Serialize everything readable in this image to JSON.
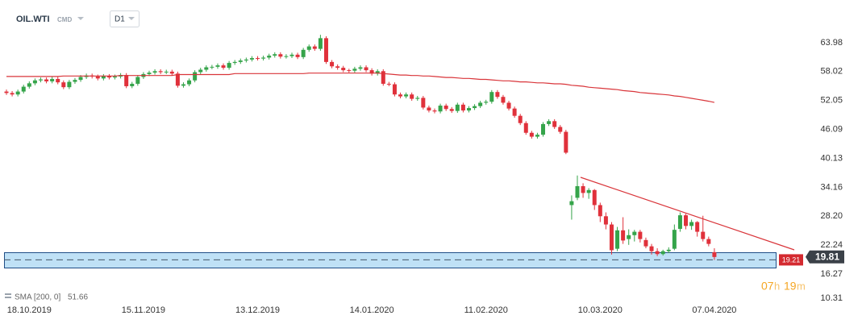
{
  "header": {
    "symbol": "OIL.WTI",
    "market": "CMD",
    "timeframe": "D1"
  },
  "countdown": {
    "hours": "07",
    "hours_unit": "h",
    "minutes": "19",
    "minutes_unit": "m"
  },
  "chart_data": {
    "type": "candlestick",
    "colors": {
      "up": "#35a44a",
      "down": "#e0313b",
      "sma": "#d9353a"
    },
    "ylim": [
      10.31,
      71.44
    ],
    "yticks": [
      63.98,
      58.02,
      52.05,
      46.09,
      40.13,
      34.16,
      {
        "value": 28.2,
        "label": "28.20"
      },
      22.24,
      16.27,
      10.31
    ],
    "grid": false,
    "price_tags": [
      19.21,
      19.81
    ],
    "categories": [
      null,
      null,
      null,
      null,
      "18.10.2019",
      null,
      null,
      null,
      null,
      null,
      null,
      null,
      null,
      null,
      null,
      null,
      null,
      null,
      null,
      null,
      null,
      null,
      null,
      null,
      "15.11.2019",
      null,
      null,
      null,
      null,
      null,
      null,
      null,
      null,
      null,
      null,
      null,
      null,
      null,
      null,
      null,
      null,
      null,
      null,
      null,
      "13.12.2019",
      null,
      null,
      null,
      null,
      null,
      null,
      null,
      null,
      null,
      null,
      null,
      null,
      null,
      null,
      null,
      null,
      null,
      null,
      null,
      "14.01.2020",
      null,
      null,
      null,
      null,
      null,
      null,
      null,
      null,
      null,
      null,
      null,
      null,
      null,
      null,
      null,
      null,
      null,
      null,
      null,
      "11.02.2020",
      null,
      null,
      null,
      null,
      null,
      null,
      null,
      null,
      null,
      null,
      null,
      null,
      null,
      null,
      null,
      null,
      null,
      null,
      null,
      "10.03.2020",
      null,
      null,
      null,
      null,
      null,
      null,
      null,
      null,
      null,
      null,
      null,
      null,
      null,
      null,
      null,
      null,
      null,
      null,
      null,
      "07.04.2020"
    ],
    "ohlc": [
      [
        53.9,
        54.3,
        53.2,
        53.6
      ],
      [
        53.6,
        54.0,
        52.9,
        53.3
      ],
      [
        53.3,
        54.3,
        52.9,
        53.9
      ],
      [
        53.9,
        55.3,
        53.5,
        54.9
      ],
      [
        54.9,
        56.0,
        54.5,
        55.6
      ],
      [
        55.6,
        56.6,
        55.2,
        56.2
      ],
      [
        56.2,
        56.8,
        55.8,
        56.4
      ],
      [
        56.4,
        56.8,
        55.6,
        56.0
      ],
      [
        56.0,
        56.9,
        55.6,
        56.5
      ],
      [
        56.5,
        56.9,
        55.4,
        55.8
      ],
      [
        55.8,
        56.2,
        54.4,
        54.8
      ],
      [
        54.8,
        56.3,
        54.4,
        55.9
      ],
      [
        55.9,
        56.7,
        55.5,
        56.3
      ],
      [
        56.3,
        57.3,
        55.9,
        56.9
      ],
      [
        56.9,
        57.6,
        56.5,
        57.2
      ],
      [
        57.2,
        57.6,
        56.6,
        57.0
      ],
      [
        57.0,
        57.4,
        56.2,
        56.6
      ],
      [
        56.6,
        57.5,
        56.2,
        57.1
      ],
      [
        57.1,
        57.5,
        56.4,
        56.8
      ],
      [
        56.8,
        57.4,
        56.4,
        57.0
      ],
      [
        57.0,
        57.7,
        56.6,
        57.3
      ],
      [
        57.3,
        57.7,
        54.6,
        55.0
      ],
      [
        55.0,
        55.9,
        54.6,
        55.5
      ],
      [
        55.5,
        57.3,
        55.1,
        56.9
      ],
      [
        56.9,
        57.9,
        56.5,
        57.5
      ],
      [
        57.5,
        58.2,
        57.1,
        57.8
      ],
      [
        57.8,
        58.5,
        57.4,
        58.1
      ],
      [
        58.1,
        58.5,
        57.5,
        57.9
      ],
      [
        57.9,
        58.4,
        57.5,
        58.0
      ],
      [
        58.0,
        58.4,
        57.2,
        57.6
      ],
      [
        57.6,
        58.0,
        54.7,
        55.1
      ],
      [
        55.1,
        55.8,
        54.7,
        55.4
      ],
      [
        55.4,
        56.6,
        55.0,
        56.2
      ],
      [
        56.2,
        58.3,
        55.8,
        57.9
      ],
      [
        57.9,
        58.8,
        57.5,
        58.4
      ],
      [
        58.4,
        59.3,
        58.0,
        58.9
      ],
      [
        58.9,
        59.4,
        58.5,
        59.0
      ],
      [
        59.0,
        59.7,
        58.6,
        59.3
      ],
      [
        59.3,
        59.7,
        58.4,
        58.8
      ],
      [
        58.8,
        60.2,
        58.4,
        59.8
      ],
      [
        59.8,
        60.4,
        59.4,
        60.0
      ],
      [
        60.0,
        60.7,
        59.6,
        60.3
      ],
      [
        60.3,
        60.9,
        59.9,
        60.5
      ],
      [
        60.5,
        61.2,
        60.1,
        60.8
      ],
      [
        60.8,
        61.2,
        60.3,
        60.7
      ],
      [
        60.7,
        61.3,
        60.3,
        60.9
      ],
      [
        60.9,
        61.7,
        60.5,
        61.3
      ],
      [
        61.3,
        62.0,
        60.9,
        61.6
      ],
      [
        61.6,
        62.0,
        60.7,
        61.1
      ],
      [
        61.1,
        61.6,
        60.7,
        61.2
      ],
      [
        61.2,
        61.9,
        60.8,
        61.5
      ],
      [
        61.5,
        61.9,
        60.6,
        61.0
      ],
      [
        61.0,
        62.9,
        60.6,
        62.5
      ],
      [
        62.5,
        63.6,
        62.1,
        63.2
      ],
      [
        63.2,
        63.6,
        62.3,
        62.7
      ],
      [
        62.7,
        65.6,
        62.3,
        64.9
      ],
      [
        64.9,
        65.3,
        59.6,
        60.0
      ],
      [
        60.0,
        60.4,
        58.7,
        59.1
      ],
      [
        59.1,
        59.5,
        58.4,
        58.8
      ],
      [
        58.8,
        59.2,
        57.9,
        58.3
      ],
      [
        58.3,
        58.6,
        57.8,
        58.2
      ],
      [
        58.2,
        59.0,
        57.8,
        58.6
      ],
      [
        58.6,
        59.3,
        58.2,
        58.9
      ],
      [
        58.9,
        59.3,
        57.9,
        58.3
      ],
      [
        58.3,
        58.7,
        57.2,
        57.6
      ],
      [
        57.6,
        58.5,
        57.2,
        58.1
      ],
      [
        58.1,
        58.5,
        55.1,
        55.5
      ],
      [
        55.5,
        55.9,
        55.0,
        55.4
      ],
      [
        55.4,
        55.8,
        52.9,
        53.3
      ],
      [
        53.3,
        53.7,
        52.5,
        52.9
      ],
      [
        52.9,
        53.7,
        52.5,
        53.3
      ],
      [
        53.3,
        53.7,
        52.0,
        52.4
      ],
      [
        52.4,
        53.0,
        52.0,
        52.6
      ],
      [
        52.6,
        53.0,
        50.2,
        50.6
      ],
      [
        50.6,
        51.0,
        49.6,
        50.0
      ],
      [
        50.0,
        50.4,
        49.4,
        49.8
      ],
      [
        49.8,
        51.4,
        49.4,
        51.0
      ],
      [
        51.0,
        51.4,
        49.9,
        50.3
      ],
      [
        50.3,
        50.7,
        49.5,
        49.9
      ],
      [
        49.9,
        51.6,
        49.5,
        51.2
      ],
      [
        51.2,
        51.6,
        49.6,
        50.0
      ],
      [
        50.0,
        50.9,
        49.6,
        50.5
      ],
      [
        50.5,
        51.3,
        50.1,
        50.9
      ],
      [
        50.9,
        52.0,
        50.5,
        51.6
      ],
      [
        51.6,
        52.2,
        51.2,
        51.8
      ],
      [
        51.8,
        54.2,
        51.4,
        53.8
      ],
      [
        53.8,
        54.2,
        52.4,
        52.8
      ],
      [
        52.8,
        53.2,
        51.2,
        51.6
      ],
      [
        51.6,
        52.0,
        50.0,
        50.4
      ],
      [
        50.4,
        50.8,
        48.5,
        48.9
      ],
      [
        48.9,
        49.3,
        47.0,
        47.4
      ],
      [
        47.4,
        47.8,
        45.0,
        45.4
      ],
      [
        45.4,
        45.8,
        44.2,
        44.6
      ],
      [
        44.6,
        45.4,
        44.2,
        45.0
      ],
      [
        45.0,
        47.6,
        44.6,
        47.2
      ],
      [
        47.2,
        48.2,
        46.8,
        47.8
      ],
      [
        47.8,
        48.2,
        46.2,
        46.6
      ],
      [
        46.6,
        47.0,
        45.2,
        45.6
      ],
      [
        45.6,
        46.0,
        41.0,
        41.3
      ],
      [
        30.5,
        32.5,
        27.5,
        31.3
      ],
      [
        32.0,
        36.6,
        31.5,
        34.4
      ],
      [
        34.4,
        35.0,
        32.0,
        33.0
      ],
      [
        33.0,
        34.0,
        31.8,
        33.6
      ],
      [
        33.6,
        33.8,
        29.5,
        30.5
      ],
      [
        30.5,
        31.0,
        27.0,
        28.2
      ],
      [
        28.2,
        29.0,
        25.5,
        26.5
      ],
      [
        26.5,
        27.0,
        20.3,
        21.2
      ],
      [
        21.5,
        26.0,
        21.0,
        25.3
      ],
      [
        25.3,
        28.0,
        22.5,
        23.2
      ],
      [
        23.5,
        25.5,
        22.3,
        24.3
      ],
      [
        24.3,
        25.4,
        23.0,
        25.0
      ],
      [
        25.0,
        25.4,
        22.8,
        23.5
      ],
      [
        23.3,
        23.8,
        21.6,
        22.0
      ],
      [
        22.0,
        22.5,
        20.3,
        21.0
      ],
      [
        21.0,
        21.6,
        20.0,
        20.4
      ],
      [
        20.4,
        21.3,
        20.1,
        21.0
      ],
      [
        21.0,
        21.8,
        20.6,
        21.3
      ],
      [
        21.5,
        26.5,
        21.2,
        25.4
      ],
      [
        25.6,
        29.0,
        25.0,
        28.4
      ],
      [
        28.4,
        28.7,
        25.5,
        26.2
      ],
      [
        26.2,
        27.5,
        25.4,
        27.0
      ],
      [
        27.0,
        27.2,
        24.0,
        25.0
      ],
      [
        25.0,
        28.3,
        23.0,
        23.5
      ],
      [
        23.5,
        24.0,
        22.0,
        22.5
      ],
      [
        20.8,
        21.6,
        19.2,
        19.8
      ]
    ],
    "sma": {
      "name": "SMA [200, 0]",
      "values": [
        57.0,
        57.0,
        57.0,
        57.0,
        57.0,
        57.0,
        57.0,
        57.0,
        57.0,
        57.0,
        57.1,
        57.1,
        57.1,
        57.1,
        57.1,
        57.1,
        57.1,
        57.1,
        57.1,
        57.1,
        57.2,
        57.2,
        57.2,
        57.2,
        57.2,
        57.2,
        57.2,
        57.2,
        57.2,
        57.2,
        57.4,
        57.4,
        57.4,
        57.4,
        57.4,
        57.4,
        57.4,
        57.4,
        57.4,
        57.4,
        57.6,
        57.6,
        57.6,
        57.6,
        57.6,
        57.6,
        57.6,
        57.6,
        57.6,
        57.6,
        57.6,
        57.6,
        57.6,
        57.7,
        57.7,
        57.7,
        57.7,
        57.7,
        57.7,
        57.7,
        57.7,
        57.7,
        57.7,
        57.7,
        57.7,
        57.7,
        57.6,
        57.5,
        57.4,
        57.3,
        57.3,
        57.2,
        57.2,
        57.1,
        57.1,
        57.0,
        56.9,
        56.8,
        56.8,
        56.7,
        56.6,
        56.6,
        56.5,
        56.4,
        56.4,
        56.3,
        56.2,
        56.1,
        56.1,
        56.0,
        55.9,
        55.9,
        55.8,
        55.7,
        55.7,
        55.6,
        55.5,
        55.5,
        55.4,
        55.2,
        55.1,
        55.0,
        54.8,
        54.7,
        54.6,
        54.5,
        54.4,
        54.3,
        54.1,
        54.0,
        53.9,
        53.7,
        53.6,
        53.5,
        53.4,
        53.3,
        53.2,
        53.0,
        52.9,
        52.7,
        52.5,
        52.3,
        52.1,
        51.9,
        51.66
      ]
    }
  }
}
